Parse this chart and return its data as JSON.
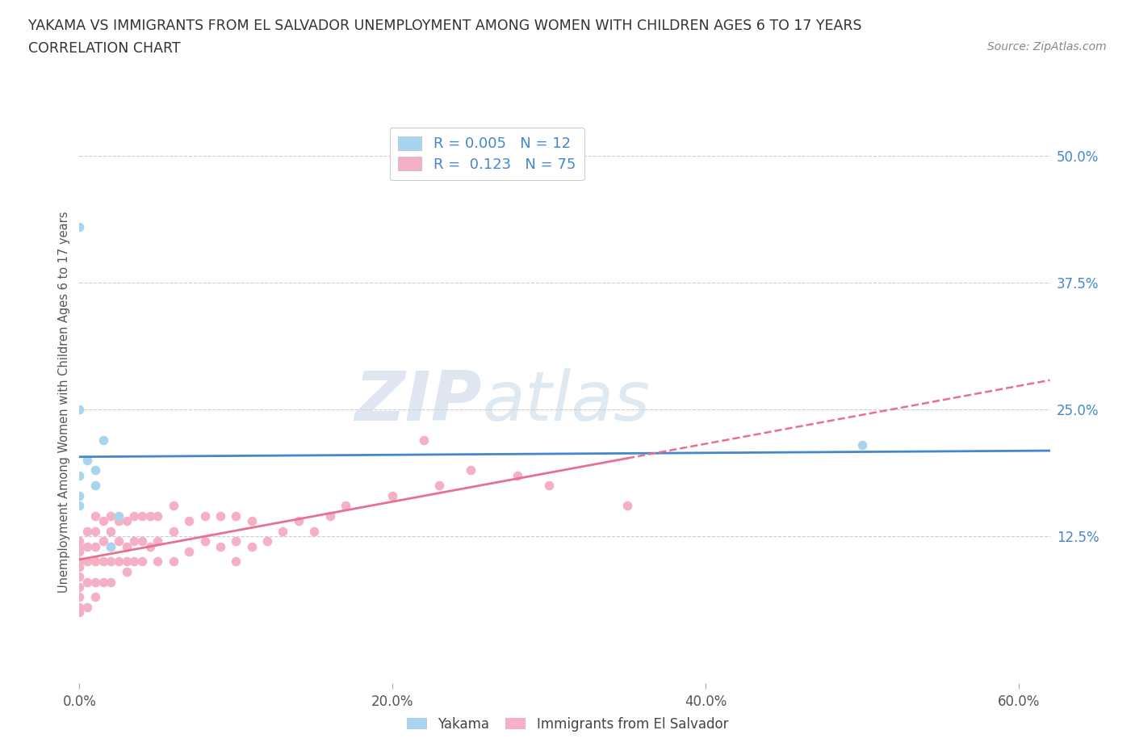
{
  "title_line1": "YAKAMA VS IMMIGRANTS FROM EL SALVADOR UNEMPLOYMENT AMONG WOMEN WITH CHILDREN AGES 6 TO 17 YEARS",
  "title_line2": "CORRELATION CHART",
  "source_text": "Source: ZipAtlas.com",
  "ylabel": "Unemployment Among Women with Children Ages 6 to 17 years",
  "xlim": [
    0.0,
    0.62
  ],
  "ylim": [
    -0.02,
    0.535
  ],
  "xtick_labels": [
    "0.0%",
    "20.0%",
    "40.0%",
    "60.0%"
  ],
  "xtick_vals": [
    0.0,
    0.2,
    0.4,
    0.6
  ],
  "ytick_labels": [
    "12.5%",
    "25.0%",
    "37.5%",
    "50.0%"
  ],
  "ytick_vals": [
    0.125,
    0.25,
    0.375,
    0.5
  ],
  "legend_R_yakama": "0.005",
  "legend_N_yakama": "12",
  "legend_R_salvador": "0.123",
  "legend_N_salvador": "75",
  "color_yakama": "#a8d4f0",
  "color_salvador": "#f5b0c5",
  "trend_color_yakama": "#4488cc",
  "trend_color_salvador": "#e87090",
  "grid_color": "#cccccc",
  "bg_color": "#ffffff",
  "tick_color_right": "#4488cc",
  "yakama_x": [
    0.0,
    0.0,
    0.0,
    0.0,
    0.005,
    0.01,
    0.01,
    0.015,
    0.02,
    0.025,
    0.5,
    0.0
  ],
  "yakama_y": [
    0.25,
    0.185,
    0.165,
    0.155,
    0.2,
    0.175,
    0.19,
    0.22,
    0.115,
    0.145,
    0.215,
    0.43
  ],
  "salvador_x": [
    0.0,
    0.0,
    0.0,
    0.0,
    0.0,
    0.0,
    0.0,
    0.0,
    0.0,
    0.0,
    0.005,
    0.005,
    0.005,
    0.005,
    0.005,
    0.01,
    0.01,
    0.01,
    0.01,
    0.01,
    0.01,
    0.015,
    0.015,
    0.015,
    0.015,
    0.02,
    0.02,
    0.02,
    0.02,
    0.02,
    0.025,
    0.025,
    0.025,
    0.03,
    0.03,
    0.03,
    0.03,
    0.035,
    0.035,
    0.035,
    0.04,
    0.04,
    0.04,
    0.045,
    0.045,
    0.05,
    0.05,
    0.05,
    0.06,
    0.06,
    0.06,
    0.07,
    0.07,
    0.08,
    0.08,
    0.09,
    0.09,
    0.1,
    0.1,
    0.1,
    0.11,
    0.11,
    0.12,
    0.13,
    0.14,
    0.15,
    0.16,
    0.17,
    0.2,
    0.22,
    0.23,
    0.25,
    0.28,
    0.3,
    0.35
  ],
  "salvador_y": [
    0.05,
    0.055,
    0.065,
    0.075,
    0.085,
    0.095,
    0.1,
    0.11,
    0.115,
    0.12,
    0.055,
    0.08,
    0.1,
    0.115,
    0.13,
    0.065,
    0.08,
    0.1,
    0.115,
    0.13,
    0.145,
    0.08,
    0.1,
    0.12,
    0.14,
    0.08,
    0.1,
    0.115,
    0.13,
    0.145,
    0.1,
    0.12,
    0.14,
    0.09,
    0.1,
    0.115,
    0.14,
    0.1,
    0.12,
    0.145,
    0.1,
    0.12,
    0.145,
    0.115,
    0.145,
    0.1,
    0.12,
    0.145,
    0.1,
    0.13,
    0.155,
    0.11,
    0.14,
    0.12,
    0.145,
    0.115,
    0.145,
    0.1,
    0.12,
    0.145,
    0.115,
    0.14,
    0.12,
    0.13,
    0.14,
    0.13,
    0.145,
    0.155,
    0.165,
    0.22,
    0.175,
    0.19,
    0.185,
    0.175,
    0.155
  ]
}
